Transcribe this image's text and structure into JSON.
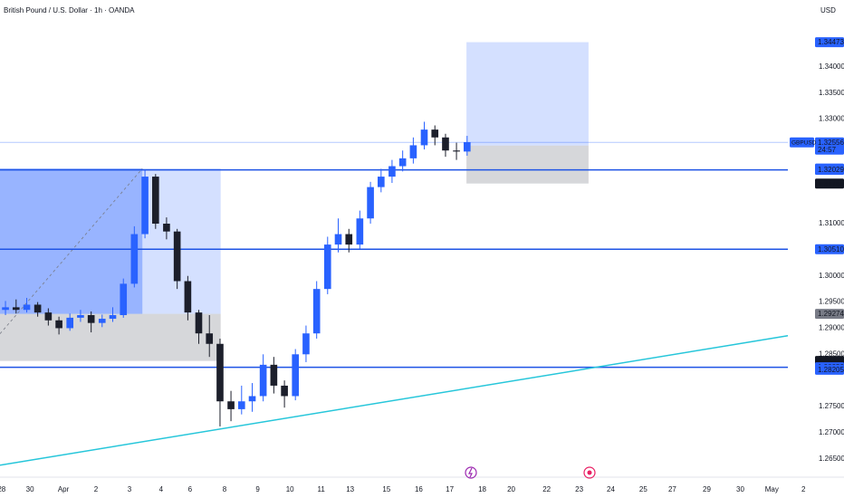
{
  "chart_data": {
    "type": "candlestick",
    "title": "British Pound / U.S. Dollar · 1h · OANDA",
    "currency": "USD",
    "up_color": "#2962ff",
    "down_color": "#1c1f2b",
    "x": [
      0.17,
      0.5,
      0.83,
      1.17,
      1.5,
      1.83,
      2.17,
      2.5,
      2.83,
      3.17,
      3.5,
      3.83,
      4.17,
      4.5,
      4.83,
      5.17,
      5.5,
      5.83,
      6.17,
      6.5,
      6.83,
      7.17,
      7.5,
      7.83,
      8.17,
      8.5,
      8.83,
      9.17,
      9.5,
      9.83,
      10.17,
      10.5,
      10.83,
      11.17,
      11.5,
      11.83,
      12.17,
      12.5,
      12.83,
      13.17,
      13.5,
      13.83,
      14.17,
      14.5
    ],
    "open": [
      1.2935,
      1.294,
      1.2935,
      1.2945,
      1.293,
      1.2915,
      1.29,
      1.292,
      1.2925,
      1.291,
      1.2918,
      1.2925,
      1.2985,
      1.308,
      1.319,
      1.31,
      1.3085,
      1.299,
      1.293,
      1.289,
      1.287,
      1.276,
      1.2745,
      1.276,
      1.277,
      1.283,
      1.279,
      1.277,
      1.285,
      1.289,
      1.2975,
      1.306,
      1.308,
      1.306,
      1.311,
      1.317,
      1.319,
      1.321,
      1.3225,
      1.325,
      1.328,
      1.3265,
      1.324,
      1.3238
    ],
    "high": [
      1.2952,
      1.2955,
      1.2958,
      1.295,
      1.2938,
      1.2922,
      1.2928,
      1.2935,
      1.2932,
      1.2926,
      1.294,
      1.2995,
      1.3095,
      1.3203,
      1.3195,
      1.3112,
      1.309,
      1.3,
      1.2935,
      1.2925,
      1.288,
      1.278,
      1.279,
      1.2795,
      1.285,
      1.2845,
      1.28,
      1.286,
      1.2905,
      1.299,
      1.3075,
      1.311,
      1.309,
      1.3125,
      1.318,
      1.3205,
      1.3222,
      1.324,
      1.3265,
      1.3295,
      1.3288,
      1.3272,
      1.3255,
      1.3268
    ],
    "low": [
      1.2925,
      1.2928,
      1.293,
      1.2922,
      1.2905,
      1.2888,
      1.2895,
      1.2912,
      1.2892,
      1.2902,
      1.2912,
      1.292,
      1.2978,
      1.3072,
      1.309,
      1.307,
      1.2975,
      1.2915,
      1.287,
      1.2845,
      1.2712,
      1.2722,
      1.2735,
      1.274,
      1.276,
      1.2775,
      1.2748,
      1.2762,
      1.2835,
      1.288,
      1.2965,
      1.3045,
      1.3045,
      1.3052,
      1.31,
      1.316,
      1.3178,
      1.32,
      1.3215,
      1.3242,
      1.325,
      1.3228,
      1.3222,
      1.323
    ],
    "close": [
      1.294,
      1.2935,
      1.2945,
      1.293,
      1.2915,
      1.29,
      1.292,
      1.2925,
      1.291,
      1.2918,
      1.2925,
      1.2985,
      1.308,
      1.319,
      1.31,
      1.3085,
      1.299,
      1.293,
      1.289,
      1.287,
      1.276,
      1.2745,
      1.276,
      1.277,
      1.283,
      1.279,
      1.277,
      1.285,
      1.289,
      1.2975,
      1.306,
      1.308,
      1.306,
      1.311,
      1.317,
      1.319,
      1.321,
      1.3225,
      1.325,
      1.328,
      1.3265,
      1.324,
      1.3238,
      1.3256
    ],
    "xlim": [
      0,
      26.2
    ],
    "ylim": [
      1.3528,
      1.2627
    ],
    "xticks": [
      {
        "value": 0.05,
        "label": "28"
      },
      {
        "value": 0.93,
        "label": "30"
      },
      {
        "value": 1.97,
        "label": "Apr"
      },
      {
        "value": 2.98,
        "label": "2"
      },
      {
        "value": 4.02,
        "label": "3"
      },
      {
        "value": 5.0,
        "label": "4"
      },
      {
        "value": 5.9,
        "label": "6"
      },
      {
        "value": 6.97,
        "label": "8"
      },
      {
        "value": 8.0,
        "label": "9"
      },
      {
        "value": 9.0,
        "label": "10"
      },
      {
        "value": 9.97,
        "label": "11"
      },
      {
        "value": 10.87,
        "label": "13"
      },
      {
        "value": 12.0,
        "label": "15"
      },
      {
        "value": 13.0,
        "label": "16"
      },
      {
        "value": 13.96,
        "label": "17"
      },
      {
        "value": 14.97,
        "label": "18"
      },
      {
        "value": 15.87,
        "label": "20"
      },
      {
        "value": 16.97,
        "label": "22"
      },
      {
        "value": 17.98,
        "label": "23"
      },
      {
        "value": 18.96,
        "label": "24"
      },
      {
        "value": 19.97,
        "label": "25"
      },
      {
        "value": 20.87,
        "label": "27"
      },
      {
        "value": 21.94,
        "label": "29"
      },
      {
        "value": 22.98,
        "label": "30"
      },
      {
        "value": 23.96,
        "label": "May"
      },
      {
        "value": 24.94,
        "label": "2"
      }
    ],
    "yticks": [
      {
        "value": 1.34,
        "label": "1.34000"
      },
      {
        "value": 1.335,
        "label": "1.33500"
      },
      {
        "value": 1.33,
        "label": "1.33000"
      },
      {
        "value": 1.31,
        "label": "1.31000"
      },
      {
        "value": 1.3,
        "label": "1.30000"
      },
      {
        "value": 1.295,
        "label": "1.29500"
      },
      {
        "value": 1.29,
        "label": "1.29000"
      },
      {
        "value": 1.285,
        "label": "1.28500"
      },
      {
        "value": 1.275,
        "label": "1.27500"
      },
      {
        "value": 1.27,
        "label": "1.27000"
      },
      {
        "value": 1.265,
        "label": "1.26500"
      }
    ],
    "last_price": {
      "value": 1.32556,
      "label": "1.32556",
      "symbol": "GBPUSD",
      "countdown": "24:57"
    },
    "price_labels": [
      {
        "value": 1.34473,
        "label": "1.34473",
        "color": "#2962ff"
      },
      {
        "value": 1.32494,
        "label": "1.32494",
        "color": "#787b86"
      },
      {
        "value": 1.32055,
        "label": "1.32055",
        "color": "#2962ff"
      },
      {
        "value": 1.32029,
        "label": "1.32029",
        "color": "#2962ff"
      },
      {
        "value": 1.31768,
        "label": "1.31768",
        "color": "#131722"
      },
      {
        "value": 1.3051,
        "label": "1.30510",
        "color": "#2962ff"
      },
      {
        "value": 1.29274,
        "label": "1.29274",
        "color": "#787b86"
      },
      {
        "value": 1.28373,
        "label": "1.28373",
        "color": "#131722"
      },
      {
        "value": 1.28252,
        "label": "1.28252",
        "color": "#2962ff"
      },
      {
        "value": 1.28205,
        "label": "1.28205",
        "color": "#2962ff"
      }
    ],
    "hlines": [
      1.32029,
      1.3051,
      1.28252
    ],
    "hline_color": "#1e53e5",
    "trendline": {
      "x": [
        0,
        24.8
      ],
      "y": [
        1.26378,
        1.2889
      ],
      "color": "#26c6da"
    },
    "positions": [
      {
        "x": [
          0,
          6.85
        ],
        "target": 1.32055,
        "entry": 1.29274,
        "stop": 1.28373,
        "hit_x": 4.42
      },
      {
        "x": [
          14.48,
          18.27
        ],
        "target": 1.34473,
        "entry": 1.32494,
        "stop": 1.31768
      }
    ]
  }
}
